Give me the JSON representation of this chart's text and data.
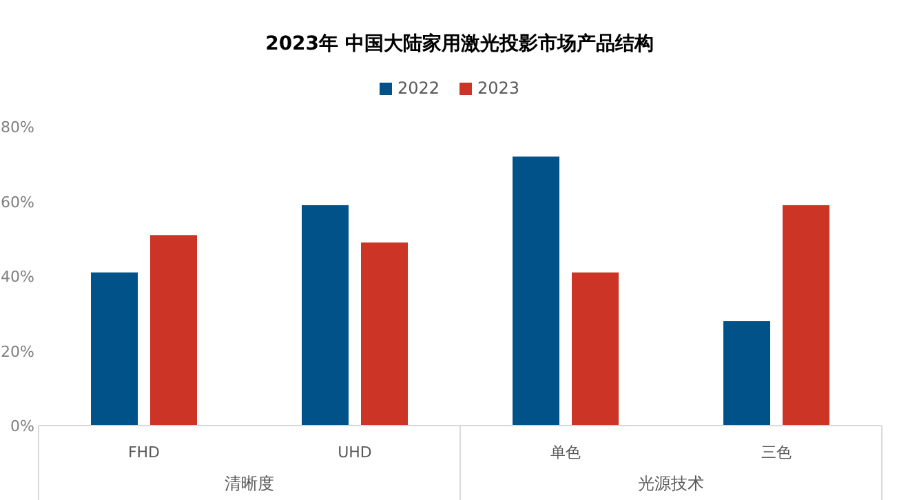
{
  "chart_data": {
    "type": "bar",
    "title": "2023年 中国大陆家用激光投影市场产品结构",
    "categories": [
      "FHD",
      "UHD",
      "单色",
      "三色"
    ],
    "series": [
      {
        "name": "2022",
        "color": "#005288",
        "values": [
          41,
          59,
          72,
          28
        ]
      },
      {
        "name": "2023",
        "color": "#cc3525",
        "values": [
          51,
          49,
          41,
          59
        ]
      }
    ],
    "ylim": [
      0,
      80
    ],
    "yticks": [
      {
        "value": 0,
        "label": "0%"
      },
      {
        "value": 20,
        "label": "20%"
      },
      {
        "value": 40,
        "label": "40%"
      },
      {
        "value": 60,
        "label": "60%"
      },
      {
        "value": 80,
        "label": "80%"
      }
    ],
    "annotations": [
      "清晰度",
      "光源技术"
    ],
    "legend": "top",
    "grid": false
  }
}
